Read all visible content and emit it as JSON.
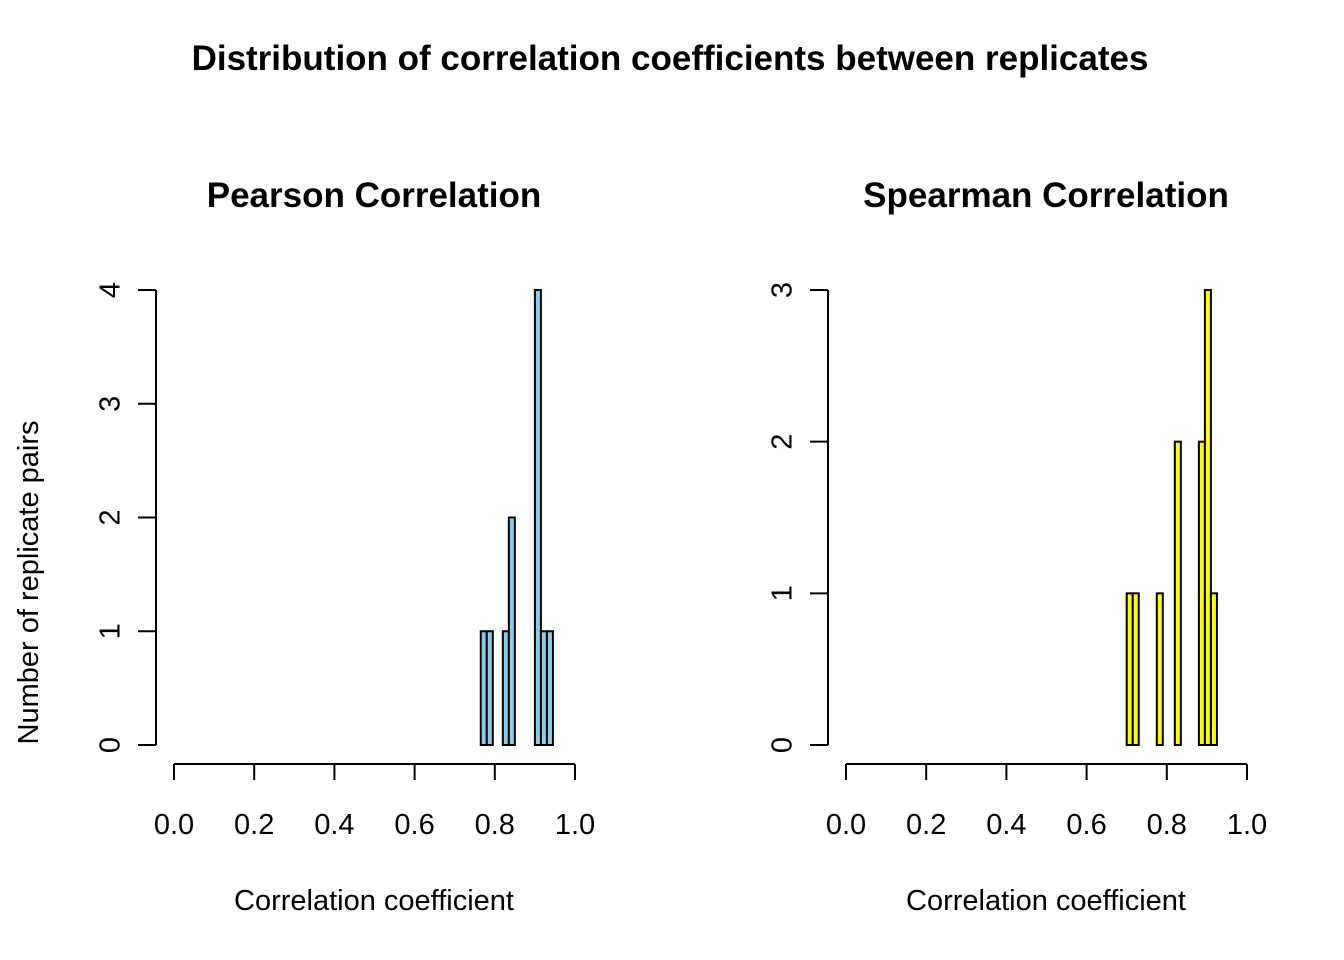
{
  "figure": {
    "title": "Distribution of correlation coefficients between replicates"
  },
  "chart_data": [
    {
      "type": "bar",
      "title": "Pearson Correlation",
      "xlabel": "Correlation coefficient",
      "ylabel": "Number of replicate pairs",
      "xlim": [
        0,
        1
      ],
      "ylim": [
        0,
        4
      ],
      "x_ticks": [
        "0.0",
        "0.2",
        "0.4",
        "0.6",
        "0.8",
        "1.0"
      ],
      "y_ticks": [
        "0",
        "1",
        "2",
        "3",
        "4"
      ],
      "bin_width": 0.015,
      "bins": [
        {
          "start": 0.765,
          "end": 0.78,
          "count": 1
        },
        {
          "start": 0.78,
          "end": 0.795,
          "count": 1
        },
        {
          "start": 0.82,
          "end": 0.835,
          "count": 1
        },
        {
          "start": 0.835,
          "end": 0.85,
          "count": 2
        },
        {
          "start": 0.9,
          "end": 0.915,
          "count": 4
        },
        {
          "start": 0.915,
          "end": 0.93,
          "count": 1
        },
        {
          "start": 0.93,
          "end": 0.945,
          "count": 1
        }
      ],
      "fill_color": "#87CEEB",
      "grid": false
    },
    {
      "type": "bar",
      "title": "Spearman Correlation",
      "xlabel": "Correlation coefficient",
      "ylabel": "",
      "xlim": [
        0,
        1
      ],
      "ylim": [
        0,
        3
      ],
      "x_ticks": [
        "0.0",
        "0.2",
        "0.4",
        "0.6",
        "0.8",
        "1.0"
      ],
      "y_ticks": [
        "0",
        "1",
        "2",
        "3"
      ],
      "bin_width": 0.015,
      "bins": [
        {
          "start": 0.7,
          "end": 0.715,
          "count": 1
        },
        {
          "start": 0.715,
          "end": 0.73,
          "count": 1
        },
        {
          "start": 0.775,
          "end": 0.79,
          "count": 1
        },
        {
          "start": 0.82,
          "end": 0.835,
          "count": 2
        },
        {
          "start": 0.88,
          "end": 0.895,
          "count": 2
        },
        {
          "start": 0.895,
          "end": 0.91,
          "count": 3
        },
        {
          "start": 0.91,
          "end": 0.925,
          "count": 1
        }
      ],
      "fill_color": "#FFFF00",
      "grid": false
    }
  ]
}
